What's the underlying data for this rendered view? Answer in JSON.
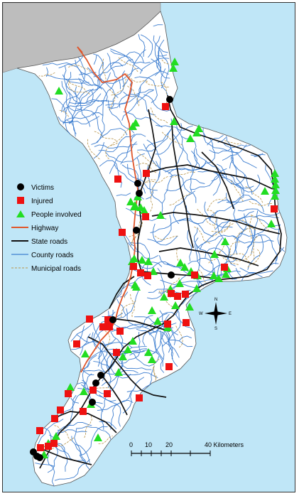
{
  "legend": {
    "victims": "Victims",
    "injured": "Injured",
    "people_involved": "People involved",
    "highway": "Highway",
    "state_roads": "State roads",
    "county_roads": "County roads",
    "municipal_roads": "Municipal roads"
  },
  "scale_bar": {
    "labels": [
      "0",
      "10",
      "20",
      "40 Kilometers"
    ]
  },
  "compass": {
    "n": "N",
    "s": "S",
    "e": "E",
    "w": "W"
  },
  "colors": {
    "sea": "#bfe6f7",
    "land": "#ffffff",
    "neighbor_land": "#bdbdbd",
    "victims": "#000000",
    "injured": "#ee1111",
    "people_involved": "#22dd22",
    "highway": "#e0552a",
    "state_roads": "#111111",
    "county_roads": "#3f7fd0",
    "municipal_roads": "#b8944a"
  }
}
